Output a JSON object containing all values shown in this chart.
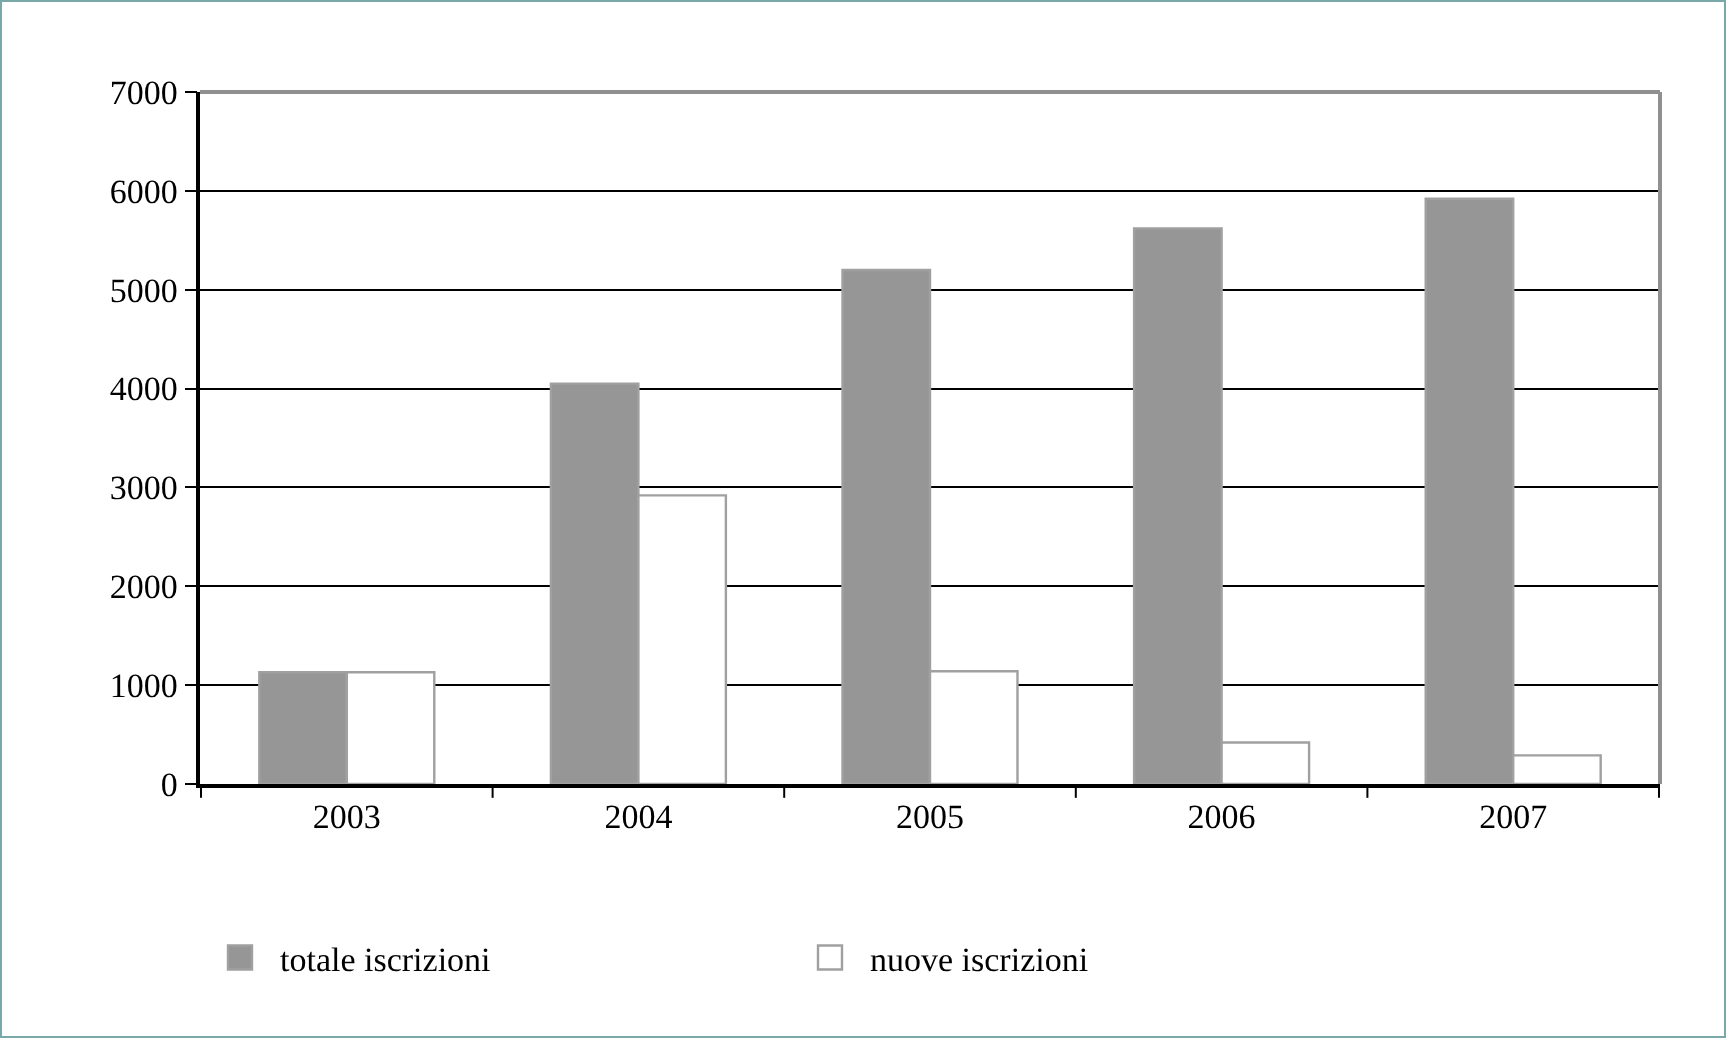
{
  "chart_data": {
    "type": "bar",
    "categories": [
      "2003",
      "2004",
      "2005",
      "2006",
      "2007"
    ],
    "series": [
      {
        "name": "totale iscrizioni",
        "color": "#969696",
        "values": [
          1130,
          4050,
          5200,
          5620,
          5920
        ]
      },
      {
        "name": "nuove iscrizioni",
        "color": "#ffffff",
        "values": [
          1130,
          2920,
          1140,
          420,
          290
        ]
      }
    ],
    "ylim": [
      0,
      7000
    ],
    "yticks": [
      0,
      1000,
      2000,
      3000,
      4000,
      5000,
      6000,
      7000
    ],
    "grid": "y",
    "legend": "bottom left"
  }
}
